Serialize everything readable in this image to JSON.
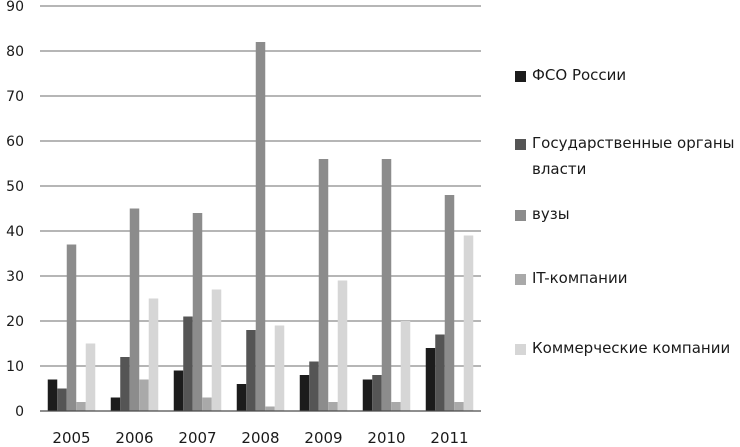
{
  "chart_data": {
    "type": "bar",
    "categories": [
      "2005",
      "2006",
      "2007",
      "2008",
      "2009",
      "2010",
      "2011"
    ],
    "ylim": [
      0,
      90
    ],
    "yticks": [
      0,
      10,
      20,
      30,
      40,
      50,
      60,
      70,
      80,
      90
    ],
    "grid": true,
    "legend_position": "right",
    "series": [
      {
        "name": "ФСО России",
        "color": "#1c1c1c",
        "values": [
          7,
          3,
          9,
          6,
          8,
          7,
          14
        ]
      },
      {
        "name": "Государственные органы власти",
        "color": "#555555",
        "values": [
          5,
          12,
          21,
          18,
          11,
          8,
          17
        ]
      },
      {
        "name": "вузы",
        "color": "#8c8c8c",
        "values": [
          37,
          45,
          44,
          82,
          56,
          56,
          48
        ]
      },
      {
        "name": "IT-компании",
        "color": "#a9a9a9",
        "values": [
          2,
          7,
          3,
          1,
          2,
          2,
          2
        ]
      },
      {
        "name": "Коммерческие компании",
        "color": "#d6d6d6",
        "values": [
          15,
          25,
          27,
          19,
          29,
          20,
          39
        ]
      }
    ]
  }
}
